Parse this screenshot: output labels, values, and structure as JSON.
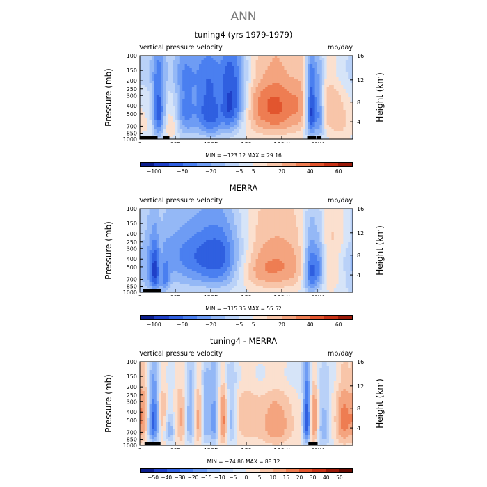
{
  "page_title": "ANN",
  "chart_data": [
    {
      "type": "heatmap",
      "title": "tuning4 (yrs 1979-1979)",
      "variable_label": "Vertical pressure velocity",
      "units": "mb/day",
      "ylabel": "Pressure (mb)",
      "ylabel_right": "Height (km)",
      "y_ticks": [
        "100",
        "150",
        "200",
        "250",
        "300",
        "400",
        "500",
        "700",
        "850",
        "1000"
      ],
      "y_right_ticks": [
        "4",
        "8",
        "12",
        "16"
      ],
      "x_ticks": [
        "0",
        "60E",
        "120E",
        "180",
        "120W",
        "60W"
      ],
      "min_max_text": "MIN = −123.12   MAX =  29.16",
      "colorbar_levels": [
        "−100",
        "−60",
        "−20",
        "−5",
        "5",
        "20",
        "40",
        "60"
      ],
      "colorbar_colors": [
        "#0b1d8c",
        "#1f40c8",
        "#2f5fe0",
        "#4a7ff0",
        "#6e9cf4",
        "#94b8f6",
        "#b9d1f8",
        "#d6e4f8",
        "#fbe0cf",
        "#f8c5a9",
        "#f4a47f",
        "#ee7d52",
        "#e2552e",
        "#c83317",
        "#9a1908"
      ],
      "colorbar_label_positions": [
        1,
        3,
        5,
        7,
        8,
        10,
        12,
        14
      ],
      "field": {
        "base": 0.05,
        "blobs": [
          [
            20,
            650,
            14,
            200,
            0.3
          ],
          [
            32,
            500,
            8,
            300,
            -2.8
          ],
          [
            42,
            600,
            10,
            300,
            0.4
          ],
          [
            55,
            700,
            10,
            160,
            0.5
          ],
          [
            78,
            450,
            12,
            300,
            -1.8
          ],
          [
            108,
            450,
            12,
            300,
            -1.8
          ],
          [
            125,
            500,
            10,
            300,
            -1.5
          ],
          [
            150,
            400,
            12,
            280,
            -2.5
          ],
          [
            170,
            350,
            12,
            250,
            -1.5
          ],
          [
            200,
            400,
            30,
            320,
            1.2
          ],
          [
            240,
            400,
            26,
            320,
            1.5
          ],
          [
            275,
            350,
            12,
            300,
            0.8
          ],
          [
            290,
            450,
            7,
            300,
            -3.2
          ],
          [
            305,
            500,
            5,
            300,
            -1.6
          ],
          [
            320,
            350,
            12,
            300,
            0.9
          ],
          [
            340,
            600,
            12,
            300,
            0.7
          ],
          [
            80,
            150,
            140,
            80,
            -0.6
          ]
        ],
        "black_segments": [
          [
            0,
            30
          ],
          [
            40,
            50
          ],
          [
            283,
            298
          ],
          [
            300,
            306
          ]
        ]
      }
    },
    {
      "type": "heatmap",
      "title": "MERRA",
      "variable_label": "Vertical pressure velocity",
      "units": "mb/day",
      "ylabel": "Pressure (mb)",
      "ylabel_right": "Height (km)",
      "y_ticks": [
        "100",
        "150",
        "200",
        "250",
        "300",
        "400",
        "500",
        "700",
        "850",
        "1000"
      ],
      "y_right_ticks": [
        "4",
        "8",
        "12",
        "16"
      ],
      "x_ticks": [
        "0",
        "60E",
        "120E",
        "180",
        "120W",
        "60W"
      ],
      "min_max_text": "MIN = −115.35   MAX =  55.52",
      "colorbar_levels": [
        "−100",
        "−60",
        "−20",
        "−5",
        "5",
        "20",
        "40",
        "60"
      ],
      "colorbar_colors": [
        "#0b1d8c",
        "#1f40c8",
        "#2f5fe0",
        "#4a7ff0",
        "#6e9cf4",
        "#94b8f6",
        "#b9d1f8",
        "#d6e4f8",
        "#fbe0cf",
        "#f8c5a9",
        "#f4a47f",
        "#ee7d52",
        "#e2552e",
        "#c83317",
        "#9a1908"
      ],
      "colorbar_label_positions": [
        1,
        3,
        5,
        7,
        8,
        10,
        12,
        14
      ],
      "field": {
        "base": 0.05,
        "blobs": [
          [
            15,
            500,
            25,
            400,
            -0.9
          ],
          [
            25,
            600,
            6,
            250,
            -1.8
          ],
          [
            35,
            500,
            5,
            250,
            0.6
          ],
          [
            42,
            700,
            6,
            200,
            -1.2
          ],
          [
            90,
            450,
            35,
            300,
            -1.4
          ],
          [
            140,
            450,
            25,
            300,
            -1.5
          ],
          [
            120,
            300,
            80,
            150,
            -0.6
          ],
          [
            215,
            450,
            35,
            300,
            1.7
          ],
          [
            260,
            450,
            20,
            300,
            0.6
          ],
          [
            290,
            550,
            9,
            300,
            -2.5
          ],
          [
            305,
            500,
            6,
            250,
            -1.2
          ],
          [
            325,
            500,
            15,
            350,
            0.6
          ],
          [
            340,
            200,
            20,
            100,
            0.5
          ]
        ],
        "black_segments": [
          [
            5,
            30
          ],
          [
            30,
            36
          ]
        ]
      }
    },
    {
      "type": "heatmap",
      "title": "tuning4 - MERRA",
      "variable_label": "Vertical pressure velocity",
      "units": "mb/day",
      "ylabel": "Pressure (mb)",
      "ylabel_right": "Height (km)",
      "y_ticks": [
        "100",
        "150",
        "200",
        "250",
        "300",
        "400",
        "500",
        "700",
        "850",
        "1000"
      ],
      "y_right_ticks": [
        "4",
        "8",
        "12",
        "16"
      ],
      "x_ticks": [
        "0",
        "60E",
        "120E",
        "180",
        "120W",
        "60W"
      ],
      "min_max_text": "MIN = −74.86   MAX =  88.12",
      "colorbar_levels": [
        "−50",
        "−40",
        "−30",
        "−20",
        "−15",
        "−10",
        "−5",
        "0",
        "5",
        "10",
        "15",
        "20",
        "30",
        "40",
        "50"
      ],
      "colorbar_colors": [
        "#0b1d8c",
        "#1f40c8",
        "#2f5fe0",
        "#4a7ff0",
        "#6e9cf4",
        "#94b8f6",
        "#b9d1f8",
        "#d6e4f8",
        "#fbe0cf",
        "#f8c5a9",
        "#f4a47f",
        "#ee7d52",
        "#e2552e",
        "#c83317",
        "#9a1908",
        "#6a0a02"
      ],
      "colorbar_label_positions": [
        1,
        2,
        3,
        4,
        5,
        6,
        7,
        8,
        9,
        10,
        11,
        12,
        13,
        14,
        15
      ],
      "field": {
        "base": 0.0,
        "blobs": [
          [
            8,
            450,
            8,
            300,
            1.6
          ],
          [
            22,
            500,
            8,
            300,
            -2.8
          ],
          [
            38,
            500,
            6,
            300,
            1.3
          ],
          [
            50,
            650,
            8,
            200,
            -1.3
          ],
          [
            70,
            500,
            8,
            300,
            1.1
          ],
          [
            85,
            500,
            6,
            300,
            -1.6
          ],
          [
            100,
            500,
            6,
            300,
            1.3
          ],
          [
            110,
            500,
            5,
            300,
            -1.5
          ],
          [
            125,
            500,
            6,
            300,
            -1.8
          ],
          [
            140,
            500,
            6,
            300,
            1.6
          ],
          [
            155,
            500,
            6,
            300,
            -1.3
          ],
          [
            180,
            450,
            15,
            300,
            0.8
          ],
          [
            230,
            550,
            20,
            300,
            1.3
          ],
          [
            283,
            500,
            5,
            300,
            -3.0
          ],
          [
            295,
            500,
            6,
            300,
            1.8
          ],
          [
            310,
            600,
            8,
            300,
            -1.4
          ],
          [
            345,
            500,
            10,
            300,
            1.6
          ],
          [
            200,
            150,
            150,
            60,
            -0.4
          ]
        ],
        "black_segments": [
          [
            8,
            35
          ],
          [
            285,
            300
          ]
        ]
      }
    }
  ]
}
